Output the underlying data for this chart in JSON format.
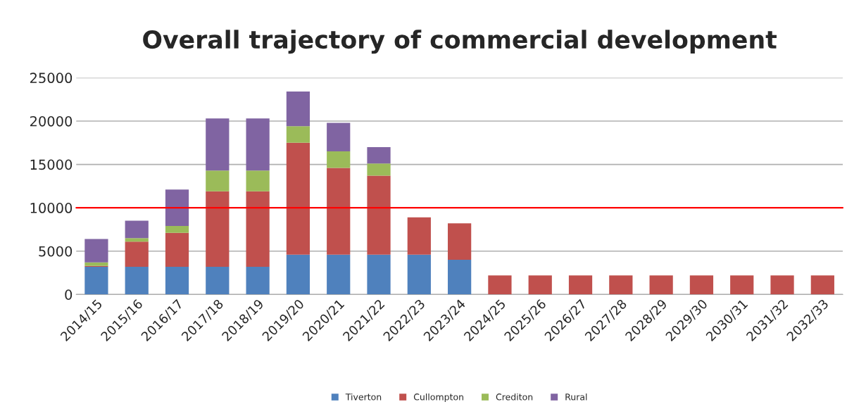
{
  "chart_data": {
    "type": "bar",
    "title": "Overall trajectory of commercial development",
    "categories": [
      "2014/15",
      "2015/16",
      "2016/17",
      "2017/18",
      "2018/19",
      "2019/20",
      "2020/21",
      "2021/22",
      "2022/23",
      "2023/24",
      "2024/25",
      "2025/26",
      "2026/27",
      "2027/28",
      "2028/29",
      "2029/30",
      "2030/31",
      "2031/32",
      "2032/33"
    ],
    "stacked": true,
    "series": [
      {
        "name": "Tiverton",
        "color": "#4f81bd",
        "values": [
          3200,
          3200,
          3200,
          3200,
          3200,
          4600,
          4600,
          4600,
          4600,
          4000,
          null,
          null,
          null,
          null,
          null,
          null,
          null,
          null,
          null
        ]
      },
      {
        "name": "Cullompton",
        "color": "#c0504d",
        "values": [
          100,
          2900,
          3900,
          8700,
          8700,
          12900,
          10000,
          9100,
          4300,
          4200,
          2200,
          2200,
          2200,
          2200,
          2200,
          2200,
          2200,
          2200,
          2200
        ]
      },
      {
        "name": "Crediton",
        "color": "#9bbb59",
        "values": [
          400,
          400,
          800,
          2400,
          2400,
          1900,
          1900,
          1400,
          null,
          null,
          null,
          null,
          null,
          null,
          null,
          null,
          null,
          null,
          null
        ]
      },
      {
        "name": "Rural",
        "color": "#8064a2",
        "values": [
          2700,
          2000,
          4200,
          6000,
          6000,
          4000,
          3300,
          1900,
          null,
          null,
          null,
          null,
          null,
          null,
          null,
          null,
          null,
          null,
          null
        ]
      }
    ],
    "ylim": [
      0,
      25000
    ],
    "yticks": [
      0,
      5000,
      10000,
      15000,
      20000,
      25000
    ],
    "ref_lines": [
      {
        "axis": "y",
        "value": 10000,
        "color": "#ff0000"
      }
    ],
    "grid": "y",
    "legend": "bottom"
  }
}
